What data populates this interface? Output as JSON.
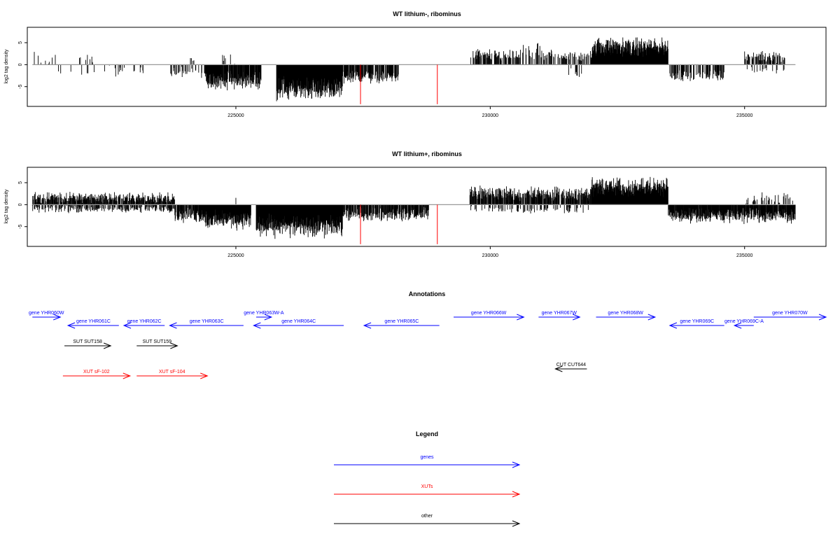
{
  "chart_data": [
    {
      "type": "bar",
      "title": "WT lithium-, ribominus",
      "ylabel": "log2 tag density",
      "xlim": [
        220900,
        236600
      ],
      "ylim": [
        -9.5,
        8.5
      ],
      "xticks": [
        225000,
        230000,
        235000
      ],
      "yticks": [
        -5,
        0,
        5
      ],
      "segments": [
        {
          "from": 221000,
          "to": 221500,
          "type": "pos",
          "mean": 1.6,
          "amp": 2.2,
          "density": 0.18
        },
        {
          "from": 221400,
          "to": 222600,
          "type": "neg",
          "mean": -1.6,
          "amp": 1.8,
          "density": 0.06
        },
        {
          "from": 221900,
          "to": 222200,
          "type": "pos",
          "mean": 1.5,
          "amp": 2.0,
          "density": 0.1
        },
        {
          "from": 222600,
          "to": 223200,
          "type": "neg",
          "mean": -1.5,
          "amp": 1.8,
          "density": 0.1
        },
        {
          "from": 223700,
          "to": 224200,
          "type": "neg",
          "mean": -1.8,
          "amp": 1.5,
          "density": 0.35
        },
        {
          "from": 224100,
          "to": 224200,
          "type": "pos",
          "mean": 1.0,
          "amp": 0.8,
          "density": 0.2
        },
        {
          "from": 224200,
          "to": 224400,
          "type": "neg",
          "mean": -2.0,
          "amp": 1.2,
          "density": 0.25
        },
        {
          "from": 224400,
          "to": 225500,
          "type": "neg",
          "mean": -3.5,
          "amp": 2.5,
          "density": 0.9
        },
        {
          "from": 224700,
          "to": 225000,
          "type": "pos",
          "mean": 1.2,
          "amp": 1.4,
          "density": 0.1
        },
        {
          "from": 225800,
          "to": 227100,
          "type": "neg",
          "mean": -5.5,
          "amp": 3.0,
          "density": 1.0
        },
        {
          "from": 227100,
          "to": 228200,
          "type": "neg",
          "mean": -2.8,
          "amp": 1.6,
          "density": 0.7
        },
        {
          "from": 229600,
          "to": 230600,
          "type": "pos",
          "mean": 2.0,
          "amp": 1.6,
          "density": 0.55
        },
        {
          "from": 230600,
          "to": 231000,
          "type": "pos",
          "mean": 2.5,
          "amp": 3.0,
          "density": 0.25
        },
        {
          "from": 231000,
          "to": 232000,
          "type": "pos",
          "mean": 2.0,
          "amp": 1.6,
          "density": 0.45
        },
        {
          "from": 231500,
          "to": 231800,
          "type": "neg",
          "mean": -2.0,
          "amp": 1.5,
          "density": 0.1
        },
        {
          "from": 232000,
          "to": 233500,
          "type": "pos",
          "mean": 4.0,
          "amp": 2.5,
          "density": 1.0
        },
        {
          "from": 233500,
          "to": 234600,
          "type": "neg",
          "mean": -2.5,
          "amp": 1.5,
          "density": 0.5
        },
        {
          "from": 235000,
          "to": 235800,
          "type": "pos",
          "mean": 1.8,
          "amp": 1.5,
          "density": 0.45
        },
        {
          "from": 235000,
          "to": 235800,
          "type": "neg",
          "mean": -1.2,
          "amp": 1.0,
          "density": 0.15
        }
      ],
      "red_bars": [
        {
          "x": 227450,
          "y": -9.0
        },
        {
          "x": 228960,
          "y": -9.0
        }
      ]
    },
    {
      "type": "bar",
      "title": "WT lithium+, ribominus",
      "ylabel": "log2 tag density",
      "xlim": [
        220900,
        236600
      ],
      "ylim": [
        -9.5,
        8.5
      ],
      "xticks": [
        225000,
        230000,
        235000
      ],
      "yticks": [
        -5,
        0,
        5
      ],
      "segments": [
        {
          "from": 221000,
          "to": 223800,
          "type": "pos",
          "mean": 1.5,
          "amp": 1.6,
          "density": 0.8
        },
        {
          "from": 221000,
          "to": 223800,
          "type": "neg",
          "mean": -1.0,
          "amp": 1.0,
          "density": 0.45
        },
        {
          "from": 223800,
          "to": 224400,
          "type": "neg",
          "mean": -2.5,
          "amp": 2.0,
          "density": 0.8
        },
        {
          "from": 224400,
          "to": 225300,
          "type": "neg",
          "mean": -3.5,
          "amp": 2.5,
          "density": 1.0
        },
        {
          "from": 225000,
          "to": 225200,
          "type": "pos",
          "mean": 1.0,
          "amp": 1.5,
          "density": 0.1
        },
        {
          "from": 225400,
          "to": 227100,
          "type": "neg",
          "mean": -5.0,
          "amp": 3.0,
          "density": 1.0
        },
        {
          "from": 227100,
          "to": 228800,
          "type": "neg",
          "mean": -2.2,
          "amp": 1.8,
          "density": 0.75
        },
        {
          "from": 229600,
          "to": 232000,
          "type": "pos",
          "mean": 2.5,
          "amp": 2.0,
          "density": 0.75
        },
        {
          "from": 229600,
          "to": 232000,
          "type": "neg",
          "mean": -1.2,
          "amp": 1.0,
          "density": 0.2
        },
        {
          "from": 232000,
          "to": 233500,
          "type": "pos",
          "mean": 4.0,
          "amp": 2.5,
          "density": 1.0
        },
        {
          "from": 233500,
          "to": 236000,
          "type": "neg",
          "mean": -2.5,
          "amp": 2.0,
          "density": 0.9
        },
        {
          "from": 235000,
          "to": 236000,
          "type": "pos",
          "mean": 1.5,
          "amp": 1.5,
          "density": 0.25
        }
      ],
      "red_bars": [
        {
          "x": 227450,
          "y": -9.0
        },
        {
          "x": 228960,
          "y": -9.0
        }
      ]
    }
  ],
  "annotations": {
    "title": "Annotations",
    "features": [
      {
        "label": "gene YHR060W",
        "kind": "gene",
        "dir": "right",
        "x1": 221000,
        "x2": 221550,
        "row": 0
      },
      {
        "label": "gene YHR061C",
        "kind": "gene",
        "dir": "left",
        "x1": 221700,
        "x2": 222700,
        "row": 1
      },
      {
        "label": "gene YHR062C",
        "kind": "gene",
        "dir": "left",
        "x1": 222800,
        "x2": 223600,
        "row": 1
      },
      {
        "label": "gene YHR063W-A",
        "kind": "gene",
        "dir": "right",
        "x1": 225400,
        "x2": 225700,
        "row": 0
      },
      {
        "label": "gene YHR063C",
        "kind": "gene",
        "dir": "left",
        "x1": 223700,
        "x2": 225150,
        "row": 1
      },
      {
        "label": "gene YHR064C",
        "kind": "gene",
        "dir": "left",
        "x1": 225350,
        "x2": 227120,
        "row": 1
      },
      {
        "label": "gene YHR065C",
        "kind": "gene",
        "dir": "left",
        "x1": 227520,
        "x2": 229000,
        "row": 1
      },
      {
        "label": "gene YHR066W",
        "kind": "gene",
        "dir": "right",
        "x1": 229280,
        "x2": 230660,
        "row": 0
      },
      {
        "label": "gene YHR067W",
        "kind": "gene",
        "dir": "right",
        "x1": 230950,
        "x2": 231760,
        "row": 0
      },
      {
        "label": "gene YHR068W",
        "kind": "gene",
        "dir": "right",
        "x1": 232080,
        "x2": 233240,
        "row": 0
      },
      {
        "label": "gene YHR069C",
        "kind": "gene",
        "dir": "left",
        "x1": 233530,
        "x2": 234600,
        "row": 1
      },
      {
        "label": "gene YHR069C-A",
        "kind": "gene",
        "dir": "left",
        "x1": 234800,
        "x2": 235180,
        "row": 1
      },
      {
        "label": "gene YHR070W",
        "kind": "gene",
        "dir": "right",
        "x1": 235180,
        "x2": 236600,
        "row": 0
      },
      {
        "label": "SUT SUT158",
        "kind": "other",
        "dir": "right",
        "x1": 221630,
        "x2": 222540,
        "row": 2
      },
      {
        "label": "SUT SUT159",
        "kind": "other",
        "dir": "right",
        "x1": 223050,
        "x2": 223850,
        "row": 2
      },
      {
        "label": "XUT sF-102",
        "kind": "xut",
        "dir": "right",
        "x1": 221600,
        "x2": 222920,
        "row": 4
      },
      {
        "label": "XUT sF-104",
        "kind": "xut",
        "dir": "right",
        "x1": 223050,
        "x2": 224440,
        "row": 4
      },
      {
        "label": "CUT CUT644",
        "kind": "other",
        "dir": "left",
        "x1": 231280,
        "x2": 231900,
        "row": 3
      }
    ]
  },
  "legend": {
    "title": "Legend",
    "items": [
      {
        "label": "genes",
        "kind": "gene"
      },
      {
        "label": "XUTs",
        "kind": "xut"
      },
      {
        "label": "other",
        "kind": "other"
      }
    ]
  },
  "colors": {
    "gene": "#0000ff",
    "xut": "#ff0000",
    "other": "#000000",
    "bars": "#000000",
    "red_bars": "#ff0000",
    "baseline": "#999999"
  }
}
